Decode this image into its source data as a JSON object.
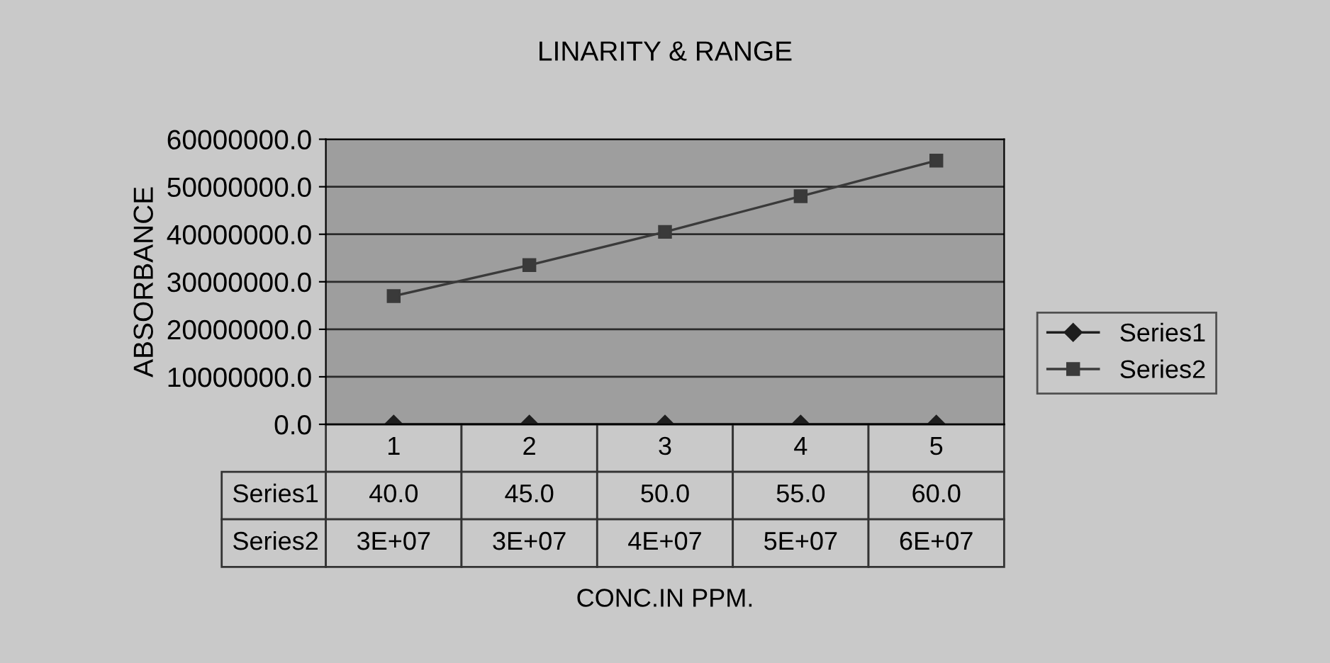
{
  "chart_data": {
    "type": "line",
    "title": "LINARITY & RANGE",
    "annotations": [
      "CONC.IN PPM."
    ],
    "ylabel": "ABSORBANCE",
    "categories": [
      "1",
      "2",
      "3",
      "4",
      "5"
    ],
    "series": [
      {
        "name": "Series1",
        "color": "#1e1e1e",
        "marker": "diamond",
        "values": [
          40,
          45,
          50,
          55,
          60
        ],
        "value_labels": [
          "40.0",
          "45.0",
          "50.0",
          "55.0",
          "60.0"
        ]
      },
      {
        "name": "Series2",
        "color": "#3a3a3a",
        "marker": "square",
        "values": [
          27000000,
          33500000,
          40500000,
          48000000,
          55500000
        ],
        "value_labels": [
          "3E+07",
          "3E+07",
          "4E+07",
          "5E+07",
          "6E+07"
        ]
      }
    ],
    "ylim": [
      0,
      60000000
    ],
    "yticks": [
      {
        "value": 0,
        "label": "0.0"
      },
      {
        "value": 10000000,
        "label": "10000000.0"
      },
      {
        "value": 20000000,
        "label": "20000000.0"
      },
      {
        "value": 30000000,
        "label": "30000000.0"
      },
      {
        "value": 40000000,
        "label": "40000000.0"
      },
      {
        "value": 50000000,
        "label": "50000000.0"
      },
      {
        "value": 60000000,
        "label": "60000000.0"
      }
    ],
    "grid": "y",
    "legend": "right",
    "line_style": "solid"
  }
}
